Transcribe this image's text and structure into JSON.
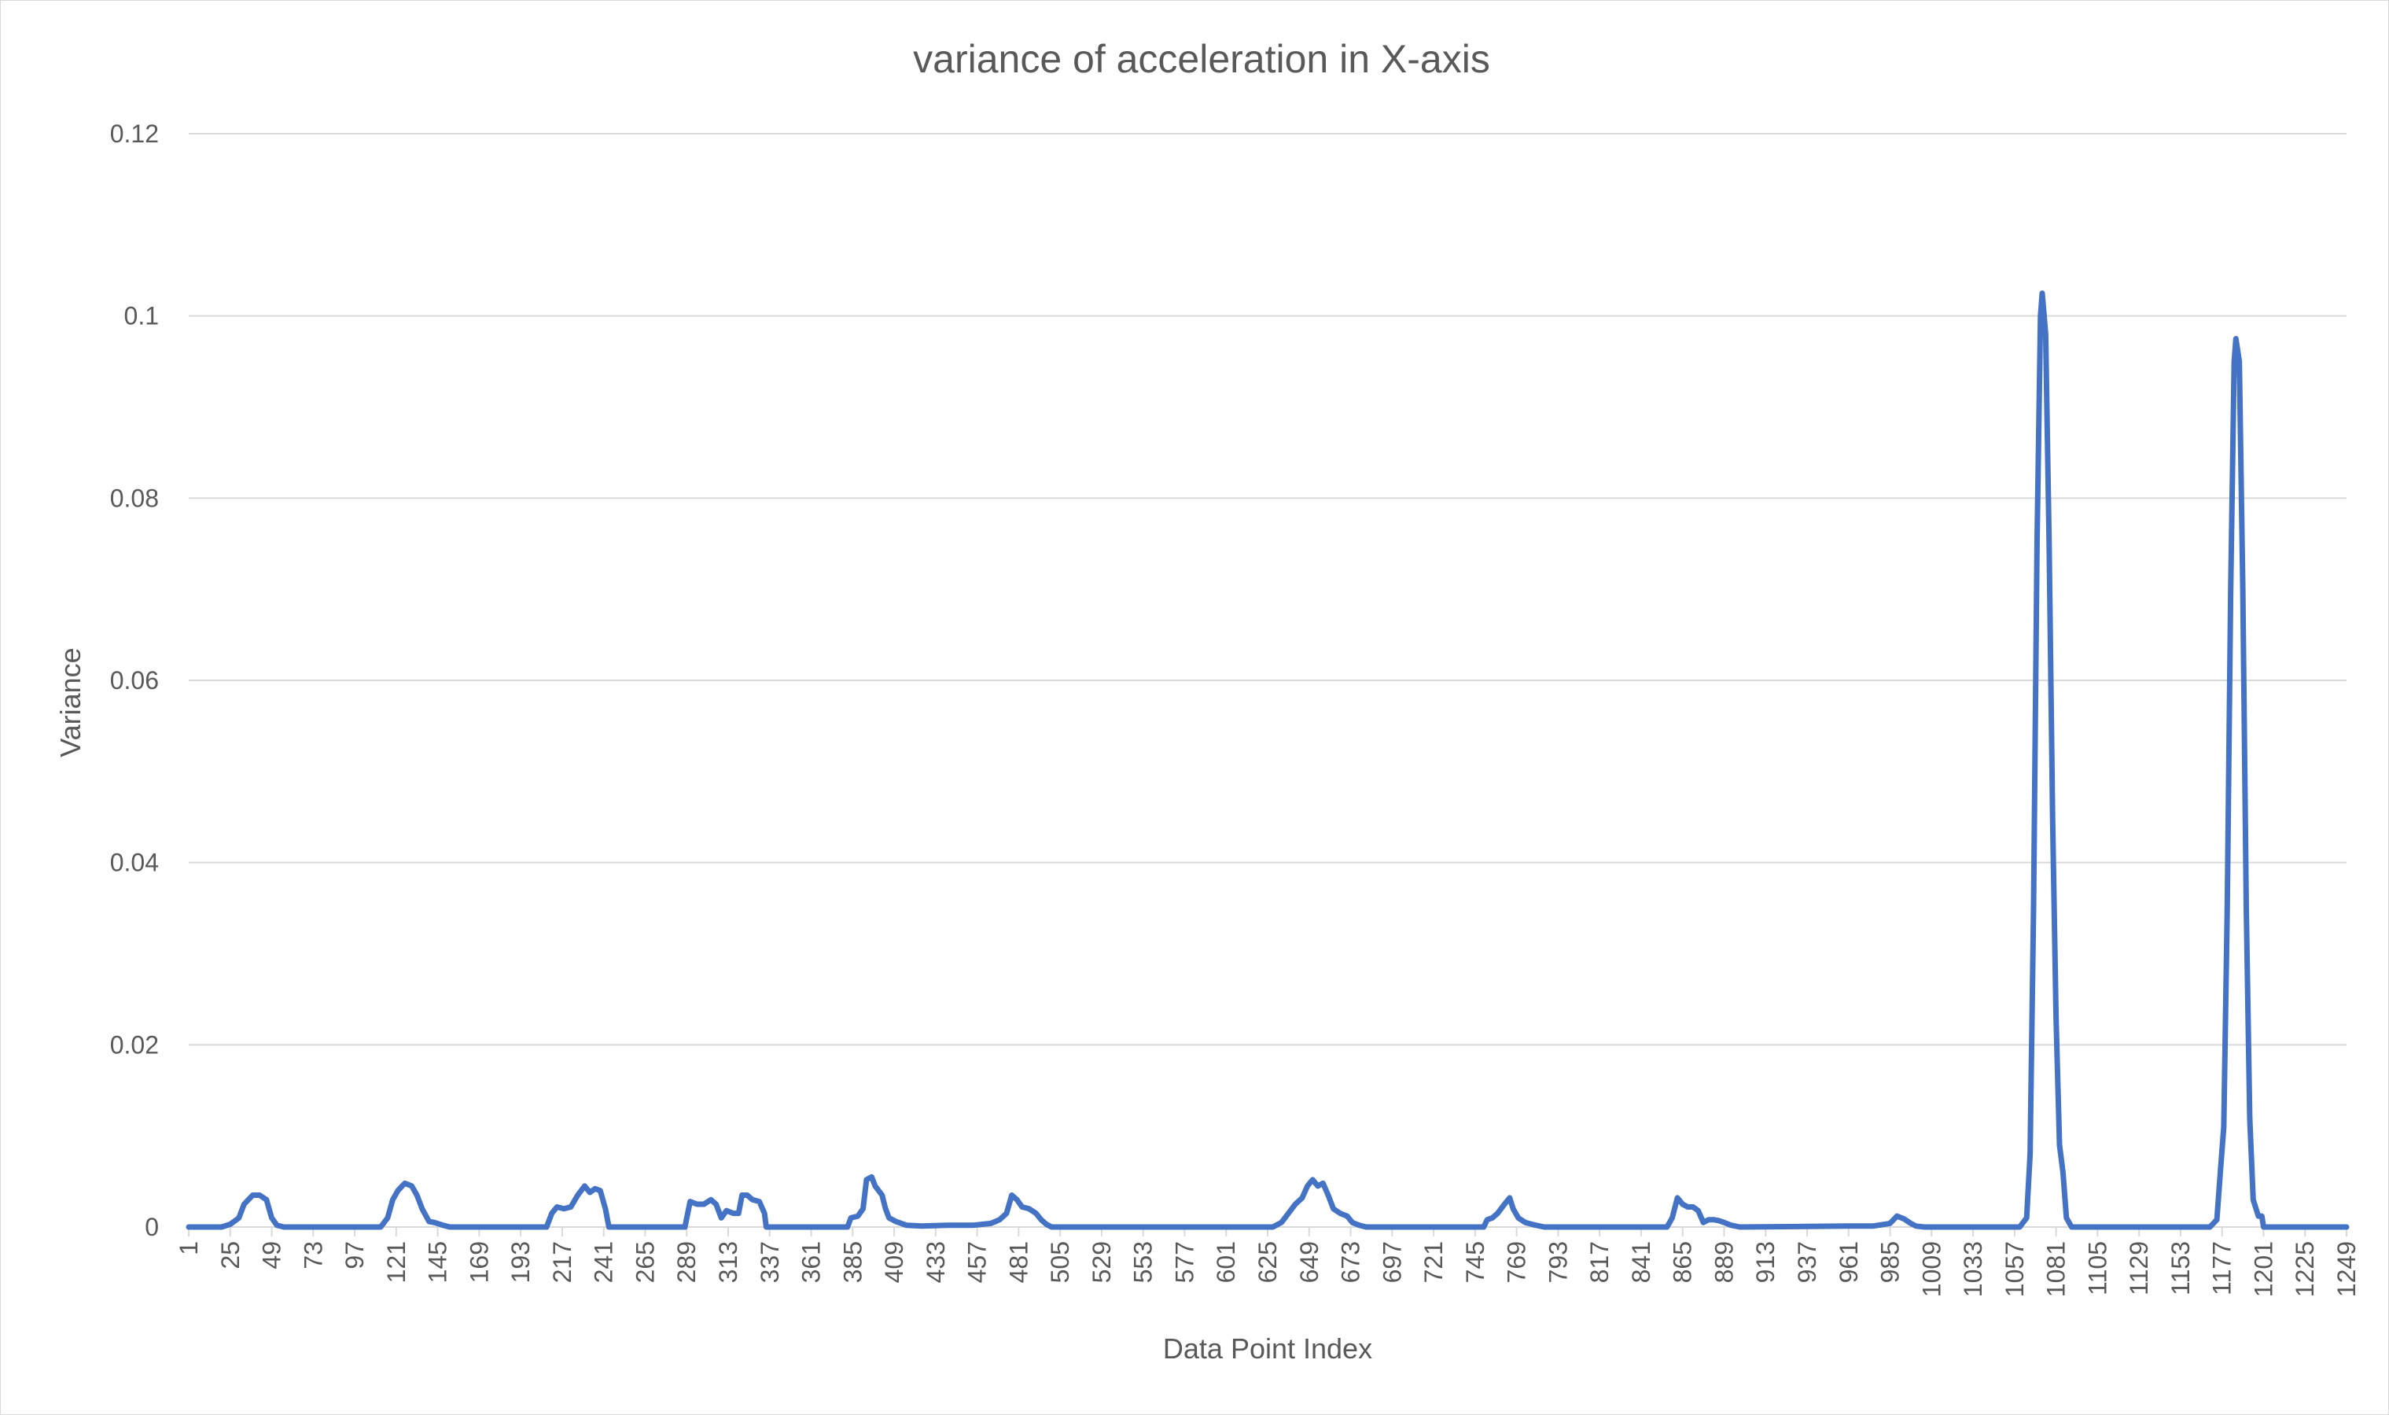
{
  "chart_data": {
    "type": "line",
    "title": "variance of acceleration in X-axis",
    "xlabel": "Data Point Index",
    "ylabel": "Variance",
    "ylim": [
      0,
      0.12
    ],
    "xlim": [
      1,
      1249
    ],
    "y_ticks": [
      "0",
      "0.02",
      "0.04",
      "0.06",
      "0.08",
      "0.1",
      "0.12"
    ],
    "y_tick_values": [
      0,
      0.02,
      0.04,
      0.06,
      0.08,
      0.1,
      0.12
    ],
    "x_tick_labels": [
      "1",
      "25",
      "49",
      "73",
      "97",
      "121",
      "145",
      "169",
      "193",
      "217",
      "241",
      "265",
      "289",
      "313",
      "337",
      "361",
      "385",
      "409",
      "433",
      "457",
      "481",
      "505",
      "529",
      "553",
      "577",
      "601",
      "625",
      "649",
      "673",
      "697",
      "721",
      "745",
      "769",
      "793",
      "817",
      "841",
      "865",
      "889",
      "913",
      "937",
      "961",
      "985",
      "1009",
      "1033",
      "1057",
      "1081",
      "1105",
      "1129",
      "1153",
      "1177",
      "1201",
      "1225",
      "1249"
    ],
    "grid": true,
    "legend": "none",
    "series": [
      {
        "color": "#4472C4",
        "points": [
          [
            1,
            0
          ],
          [
            20,
            0
          ],
          [
            25,
            0.0003
          ],
          [
            30,
            0.001
          ],
          [
            33,
            0.0025
          ],
          [
            38,
            0.0035
          ],
          [
            42,
            0.0035
          ],
          [
            46,
            0.003
          ],
          [
            49,
            0.001
          ],
          [
            52,
            0.0002
          ],
          [
            56,
            0
          ],
          [
            112,
            0
          ],
          [
            116,
            0.001
          ],
          [
            119,
            0.003
          ],
          [
            122,
            0.004
          ],
          [
            126,
            0.0048
          ],
          [
            130,
            0.0045
          ],
          [
            133,
            0.0035
          ],
          [
            136,
            0.002
          ],
          [
            140,
            0.0006
          ],
          [
            143,
            0.0005
          ],
          [
            148,
            0.0002
          ],
          [
            152,
            0
          ],
          [
            208,
            0
          ],
          [
            211,
            0.0015
          ],
          [
            214,
            0.0022
          ],
          [
            218,
            0.002
          ],
          [
            222,
            0.0022
          ],
          [
            226,
            0.0035
          ],
          [
            230,
            0.0045
          ],
          [
            233,
            0.0038
          ],
          [
            236,
            0.0042
          ],
          [
            239,
            0.004
          ],
          [
            242,
            0.002
          ],
          [
            244,
            0
          ],
          [
            288,
            0
          ],
          [
            291,
            0.0028
          ],
          [
            295,
            0.0025
          ],
          [
            299,
            0.0025
          ],
          [
            303,
            0.003
          ],
          [
            306,
            0.0025
          ],
          [
            309,
            0.001
          ],
          [
            312,
            0.0018
          ],
          [
            316,
            0.0015
          ],
          [
            319,
            0.0015
          ],
          [
            321,
            0.0035
          ],
          [
            324,
            0.0035
          ],
          [
            327,
            0.003
          ],
          [
            331,
            0.0028
          ],
          [
            334,
            0.0015
          ],
          [
            335,
            0
          ],
          [
            382,
            0
          ],
          [
            384,
            0.001
          ],
          [
            388,
            0.0012
          ],
          [
            391,
            0.002
          ],
          [
            393,
            0.0052
          ],
          [
            396,
            0.0055
          ],
          [
            398,
            0.0045
          ],
          [
            402,
            0.0035
          ],
          [
            404,
            0.002
          ],
          [
            406,
            0.001
          ],
          [
            410,
            0.0006
          ],
          [
            416,
            0.0002
          ],
          [
            425,
            0.0001
          ],
          [
            440,
            0.0002
          ],
          [
            455,
            0.0002
          ],
          [
            465,
            0.0004
          ],
          [
            470,
            0.0008
          ],
          [
            474,
            0.0015
          ],
          [
            477,
            0.0035
          ],
          [
            480,
            0.003
          ],
          [
            483,
            0.0022
          ],
          [
            487,
            0.002
          ],
          [
            491,
            0.0015
          ],
          [
            494,
            0.0008
          ],
          [
            497,
            0.0003
          ],
          [
            500,
            0
          ],
          [
            628,
            0
          ],
          [
            633,
            0.0005
          ],
          [
            637,
            0.0015
          ],
          [
            641,
            0.0025
          ],
          [
            645,
            0.0032
          ],
          [
            648,
            0.0045
          ],
          [
            651,
            0.0052
          ],
          [
            654,
            0.0045
          ],
          [
            657,
            0.0048
          ],
          [
            660,
            0.0035
          ],
          [
            663,
            0.002
          ],
          [
            667,
            0.0015
          ],
          [
            671,
            0.0012
          ],
          [
            674,
            0.0005
          ],
          [
            678,
            0.0002
          ],
          [
            682,
            0
          ],
          [
            750,
            0
          ],
          [
            752,
            0.0008
          ],
          [
            755,
            0.001
          ],
          [
            758,
            0.0015
          ],
          [
            762,
            0.0025
          ],
          [
            765,
            0.0032
          ],
          [
            767,
            0.002
          ],
          [
            770,
            0.001
          ],
          [
            774,
            0.0005
          ],
          [
            780,
            0.0002
          ],
          [
            785,
            0
          ],
          [
            856,
            0
          ],
          [
            859,
            0.001
          ],
          [
            862,
            0.0032
          ],
          [
            865,
            0.0025
          ],
          [
            868,
            0.0022
          ],
          [
            871,
            0.0022
          ],
          [
            874,
            0.0018
          ],
          [
            877,
            0.0005
          ],
          [
            880,
            0.0008
          ],
          [
            883,
            0.0008
          ],
          [
            886,
            0.0007
          ],
          [
            889,
            0.0005
          ],
          [
            893,
            0.0002
          ],
          [
            898,
            0
          ],
          [
            960,
            0.0001
          ],
          [
            975,
            0.0001
          ],
          [
            985,
            0.0004
          ],
          [
            989,
            0.0012
          ],
          [
            993,
            0.0009
          ],
          [
            997,
            0.0004
          ],
          [
            1000,
            0.0001
          ],
          [
            1005,
            0
          ],
          [
            1060,
            0
          ],
          [
            1064,
            0.001
          ],
          [
            1066,
            0.008
          ],
          [
            1068,
            0.035
          ],
          [
            1070,
            0.075
          ],
          [
            1072,
            0.1
          ],
          [
            1073,
            0.1025
          ],
          [
            1075,
            0.098
          ],
          [
            1077,
            0.075
          ],
          [
            1079,
            0.045
          ],
          [
            1081,
            0.023
          ],
          [
            1083,
            0.009
          ],
          [
            1085,
            0.006
          ],
          [
            1087,
            0.001
          ],
          [
            1090,
            0
          ],
          [
            1170,
            0
          ],
          [
            1174,
            0.0008
          ],
          [
            1176,
            0.006
          ],
          [
            1178,
            0.011
          ],
          [
            1180,
            0.035
          ],
          [
            1182,
            0.07
          ],
          [
            1184,
            0.095
          ],
          [
            1185,
            0.0975
          ],
          [
            1187,
            0.095
          ],
          [
            1189,
            0.07
          ],
          [
            1191,
            0.035
          ],
          [
            1193,
            0.012
          ],
          [
            1195,
            0.003
          ],
          [
            1198,
            0.0012
          ],
          [
            1200,
            0.0012
          ],
          [
            1201,
            0
          ],
          [
            1249,
            0
          ]
        ]
      }
    ]
  }
}
